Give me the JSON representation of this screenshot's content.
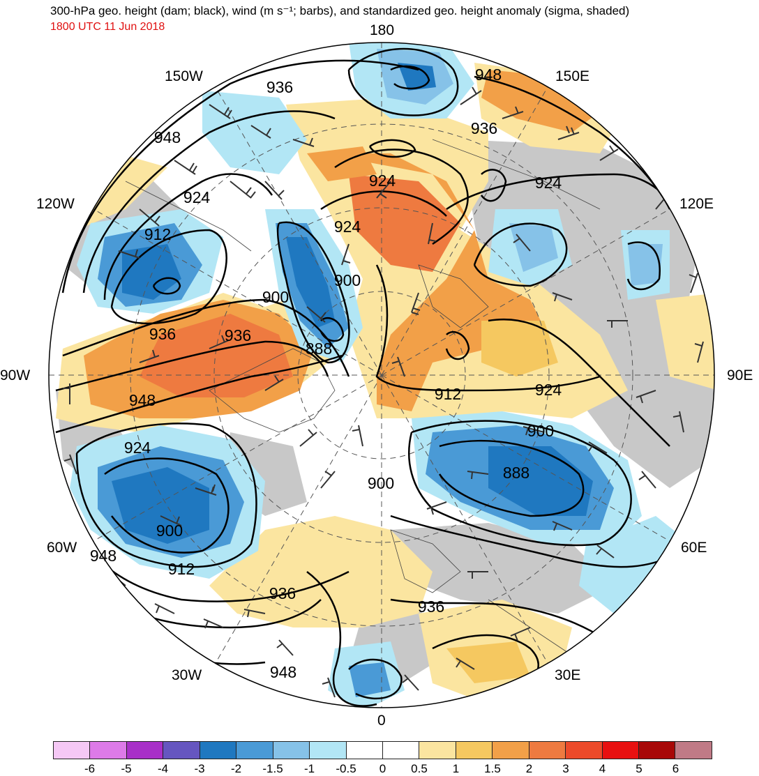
{
  "header": {
    "title": "300-hPa geo. height (dam; black), wind (m s⁻¹; barbs), and standardized geo. height anomaly (sigma, shaded)",
    "time": "1800 UTC 11 Jun 2018"
  },
  "longitude_labels": {
    "lon_180": "180",
    "lon_150w": "150W",
    "lon_150e": "150E",
    "lon_120w": "120W",
    "lon_120e": "120E",
    "lon_90w": "90W",
    "lon_90e": "90E",
    "lon_60w": "60W",
    "lon_60e": "60E",
    "lon_30w": "30W",
    "lon_30e": "30E",
    "lon_0": "0"
  },
  "contour_labels": [
    "936",
    "948",
    "948",
    "936",
    "924",
    "924",
    "924",
    "924",
    "912",
    "900",
    "900",
    "936",
    "936",
    "888",
    "948",
    "912",
    "924",
    "924",
    "900",
    "888",
    "900",
    "900",
    "948",
    "912",
    "936",
    "936",
    "948"
  ],
  "colorbar": {
    "colors": [
      "#f5c8f5",
      "#dd7ae8",
      "#a830c8",
      "#6656c0",
      "#1f78c0",
      "#4a9ad6",
      "#86c2e8",
      "#b2e6f5",
      "#ffffff",
      "#ffffff",
      "#fbe5a0",
      "#f5c860",
      "#f2a048",
      "#ee7a40",
      "#ec4a2a",
      "#e81010",
      "#a80808",
      "#c07a86"
    ],
    "ticks": [
      "-6",
      "-5",
      "-4",
      "-3",
      "-2",
      "-1.5",
      "-1",
      "-0.5",
      "0",
      "0.5",
      "1",
      "1.5",
      "2",
      "3",
      "4",
      "5",
      "6"
    ]
  },
  "colors": {
    "time_text": "#e01010",
    "land_gray": "#c8c8c8"
  }
}
